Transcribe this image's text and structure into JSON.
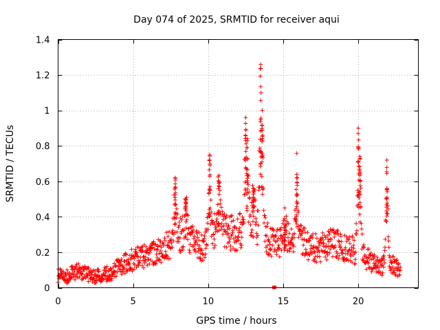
{
  "chart_data": {
    "type": "scatter",
    "title": "Day 074 of 2025, SRMTID for receiver aqui",
    "xlabel": "GPS time / hours",
    "ylabel": "SRMTID / TECUs",
    "xlim": [
      0,
      24
    ],
    "ylim": [
      0,
      1.4
    ],
    "x_ticks": [
      0,
      5,
      10,
      15,
      20
    ],
    "x_tick_labels": [
      "0",
      "5",
      "10",
      "15",
      "20"
    ],
    "y_ticks": [
      0,
      0.2,
      0.4,
      0.6,
      0.8,
      1.0,
      1.2,
      1.4
    ],
    "y_tick_labels": [
      "0",
      "0.2",
      "0.4",
      "0.6",
      "0.8",
      "1",
      "1.2",
      "1.4"
    ],
    "grid": true,
    "marker": "+",
    "series": [
      {
        "name": "SRMTID",
        "color": "#ff0000",
        "baseline": [
          [
            0.0,
            0.06
          ],
          [
            0.5,
            0.05
          ],
          [
            1.0,
            0.07
          ],
          [
            1.5,
            0.08
          ],
          [
            2.0,
            0.06
          ],
          [
            2.5,
            0.05
          ],
          [
            3.0,
            0.06
          ],
          [
            3.5,
            0.07
          ],
          [
            4.0,
            0.1
          ],
          [
            4.5,
            0.12
          ],
          [
            5.0,
            0.14
          ],
          [
            5.5,
            0.15
          ],
          [
            6.0,
            0.16
          ],
          [
            6.5,
            0.18
          ],
          [
            7.0,
            0.2
          ],
          [
            7.5,
            0.22
          ],
          [
            8.0,
            0.26
          ],
          [
            8.5,
            0.28
          ],
          [
            9.0,
            0.24
          ],
          [
            9.5,
            0.2
          ],
          [
            10.0,
            0.24
          ],
          [
            10.5,
            0.3
          ],
          [
            11.0,
            0.3
          ],
          [
            11.5,
            0.28
          ],
          [
            12.0,
            0.28
          ],
          [
            12.5,
            0.3
          ],
          [
            13.0,
            0.32
          ],
          [
            13.5,
            0.3
          ],
          [
            14.0,
            0.24
          ],
          [
            14.5,
            0.22
          ],
          [
            15.0,
            0.24
          ],
          [
            15.5,
            0.26
          ],
          [
            16.0,
            0.26
          ],
          [
            16.5,
            0.22
          ],
          [
            17.0,
            0.2
          ],
          [
            17.5,
            0.2
          ],
          [
            18.0,
            0.22
          ],
          [
            18.5,
            0.22
          ],
          [
            19.0,
            0.2
          ],
          [
            19.5,
            0.2
          ],
          [
            20.0,
            0.17
          ],
          [
            20.5,
            0.15
          ],
          [
            21.0,
            0.12
          ],
          [
            21.5,
            0.1
          ],
          [
            22.0,
            0.12
          ],
          [
            22.5,
            0.1
          ],
          [
            22.8,
            0.07
          ]
        ],
        "spikes": [
          [
            7.8,
            0.62
          ],
          [
            8.5,
            0.5
          ],
          [
            10.1,
            0.75
          ],
          [
            10.7,
            0.6
          ],
          [
            12.5,
            0.96
          ],
          [
            12.6,
            0.84
          ],
          [
            13.0,
            0.56
          ],
          [
            13.5,
            1.26
          ],
          [
            13.6,
            1.0
          ],
          [
            15.1,
            0.38
          ],
          [
            15.9,
            0.64
          ],
          [
            20.0,
            0.9
          ],
          [
            20.1,
            0.74
          ],
          [
            21.9,
            0.72
          ]
        ],
        "outliers": [
          [
            14.4,
            0.0
          ]
        ]
      }
    ]
  }
}
